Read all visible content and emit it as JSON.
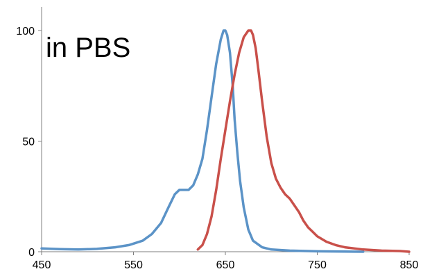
{
  "chart_data": {
    "type": "line",
    "title": "",
    "xlabel": "",
    "ylabel": "",
    "xlim": [
      450,
      850
    ],
    "ylim": [
      0,
      100
    ],
    "x_ticks": [
      450,
      550,
      650,
      750,
      850
    ],
    "x_tick_labels": [
      "450",
      "550",
      "650",
      "750",
      "850"
    ],
    "y_ticks": [
      0,
      50,
      100
    ],
    "y_tick_labels": [
      "0",
      "50",
      "100"
    ],
    "grid": false,
    "legend": "none",
    "annotations": [
      {
        "text": "in PBS",
        "position": "top-left"
      }
    ],
    "series": [
      {
        "color": "#5B93C7",
        "x": [
          450,
          470,
          490,
          510,
          530,
          545,
          560,
          570,
          580,
          588,
          595,
          600,
          605,
          610,
          615,
          620,
          625,
          630,
          635,
          640,
          645,
          648,
          650,
          652,
          655,
          658,
          660,
          663,
          666,
          670,
          675,
          680,
          690,
          700,
          720,
          750,
          800
        ],
        "y": [
          1.5,
          1.2,
          1,
          1.3,
          2,
          3,
          5,
          8,
          13,
          20,
          26,
          28,
          28,
          28,
          30,
          35,
          42,
          55,
          70,
          85,
          96,
          100,
          100,
          98,
          90,
          75,
          60,
          45,
          32,
          20,
          10,
          5,
          2,
          1,
          0.5,
          0.2,
          0
        ]
      },
      {
        "color": "#C9504A",
        "x": [
          620,
          625,
          630,
          635,
          640,
          645,
          650,
          655,
          660,
          665,
          670,
          675,
          678,
          680,
          683,
          686,
          690,
          695,
          700,
          705,
          710,
          715,
          720,
          725,
          730,
          735,
          740,
          745,
          750,
          760,
          770,
          780,
          790,
          800,
          820,
          840,
          850
        ],
        "y": [
          1,
          3,
          8,
          16,
          28,
          42,
          55,
          68,
          80,
          90,
          97,
          100,
          100,
          98,
          92,
          82,
          68,
          52,
          40,
          33,
          29,
          26,
          24,
          21,
          18,
          14,
          11,
          9,
          7,
          4.5,
          3,
          2,
          1.5,
          1,
          0.5,
          0.3,
          0
        ]
      }
    ]
  }
}
